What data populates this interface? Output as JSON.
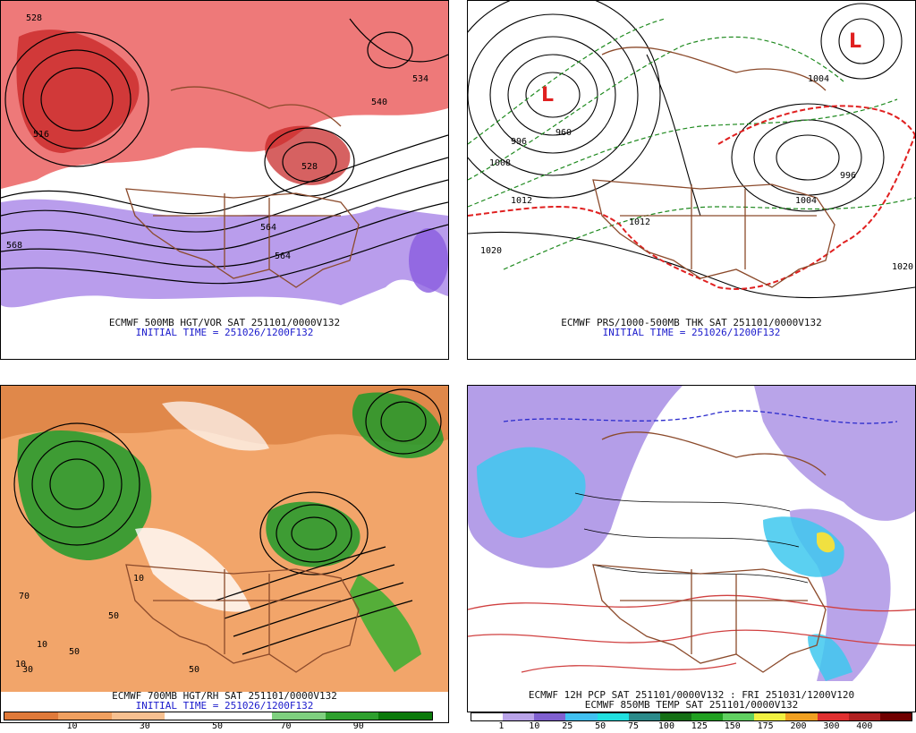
{
  "panels": {
    "tl": {
      "title": "ECMWF 500MB HGT/VOR SAT 251101/0000V132",
      "init": "INITIAL TIME = 251026/1200F132"
    },
    "tr": {
      "title": "ECMWF PRS/1000-500MB THK SAT 251101/0000V132",
      "init": "INITIAL TIME = 251026/1200F132"
    },
    "bl": {
      "title": "ECMWF 700MB HGT/RH SAT 251101/0000V132",
      "init": "INITIAL TIME = 251026/1200F132"
    },
    "br": {
      "title": "ECMWF 12H PCP SAT 251101/0000V132 : FRI 251031/1200V120",
      "title2": "ECMWF 850MB TEMP SAT 251101/0000V132"
    }
  },
  "rh_colorbar": {
    "colors": [
      "#e07a3a",
      "#f0a060",
      "#f7c090",
      "#ffffff",
      "#ffffff",
      "#7fd07f",
      "#2ea02e",
      "#0a7a0a"
    ],
    "ticks": [
      "10",
      "30",
      "50",
      "70",
      "90"
    ]
  },
  "pcp_colorbar": {
    "colors": [
      "#ffffff",
      "#b9a3e8",
      "#8060d0",
      "#40c0f0",
      "#20e0e0",
      "#2a8a8a",
      "#157015",
      "#20a020",
      "#60d060",
      "#f0f040",
      "#f0a020",
      "#e03030",
      "#b02020",
      "#700000"
    ],
    "ticks": [
      "1",
      "10",
      "25",
      "50",
      "75",
      "100",
      "125",
      "150",
      "175",
      "200",
      "300",
      "400"
    ]
  },
  "labels": {
    "tl": [
      "528",
      "534",
      "516",
      "540",
      "528",
      "564",
      "564",
      "568"
    ],
    "tr": [
      "996",
      "960",
      "1008",
      "1012",
      "1020",
      "1004",
      "996",
      "1004",
      "1020",
      "1012"
    ],
    "bl": [
      "10",
      "30",
      "50",
      "70",
      "10",
      "50",
      "10",
      "50"
    ]
  }
}
